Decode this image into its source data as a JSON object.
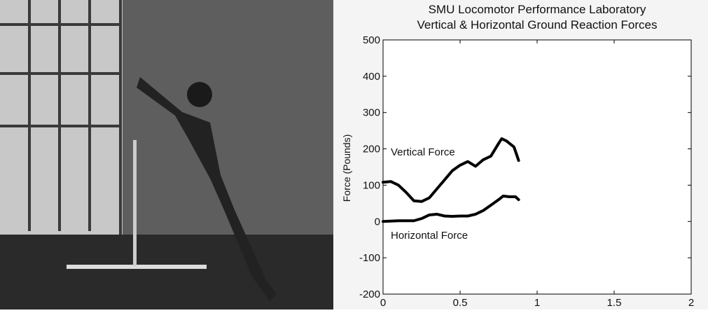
{
  "chart_data": {
    "type": "line",
    "title": [
      "SMU Locomotor Performance Laboratory",
      "Vertical & Horizontal Ground Reaction Forces"
    ],
    "y_label": "Force (Pounds)",
    "annotations": [
      "Vertical Force",
      "Horizontal Force"
    ],
    "xlim": [
      0,
      2
    ],
    "xticks": [
      0,
      0.5,
      1,
      1.5,
      2
    ],
    "ylim": [
      -200,
      500
    ],
    "yticks": [
      -200,
      -100,
      0,
      100,
      200,
      300,
      400,
      500
    ],
    "grid": false,
    "series": [
      {
        "color": "#000000",
        "x": [
          0,
          0.05,
          0.1,
          0.15,
          0.2,
          0.25,
          0.3,
          0.35,
          0.4,
          0.45,
          0.5,
          0.55,
          0.6,
          0.65,
          0.7,
          0.75,
          0.77,
          0.8,
          0.85,
          0.88
        ],
        "values": [
          108,
          110,
          100,
          80,
          57,
          55,
          65,
          90,
          115,
          140,
          155,
          165,
          152,
          170,
          180,
          215,
          228,
          222,
          205,
          168
        ]
      },
      {
        "color": "#000000",
        "x": [
          0,
          0.1,
          0.2,
          0.25,
          0.3,
          0.35,
          0.4,
          0.45,
          0.5,
          0.55,
          0.6,
          0.65,
          0.7,
          0.75,
          0.78,
          0.82,
          0.86,
          0.88
        ],
        "values": [
          0,
          2,
          2,
          8,
          18,
          20,
          15,
          14,
          15,
          15,
          20,
          30,
          45,
          60,
          70,
          68,
          68,
          60
        ]
      }
    ]
  }
}
